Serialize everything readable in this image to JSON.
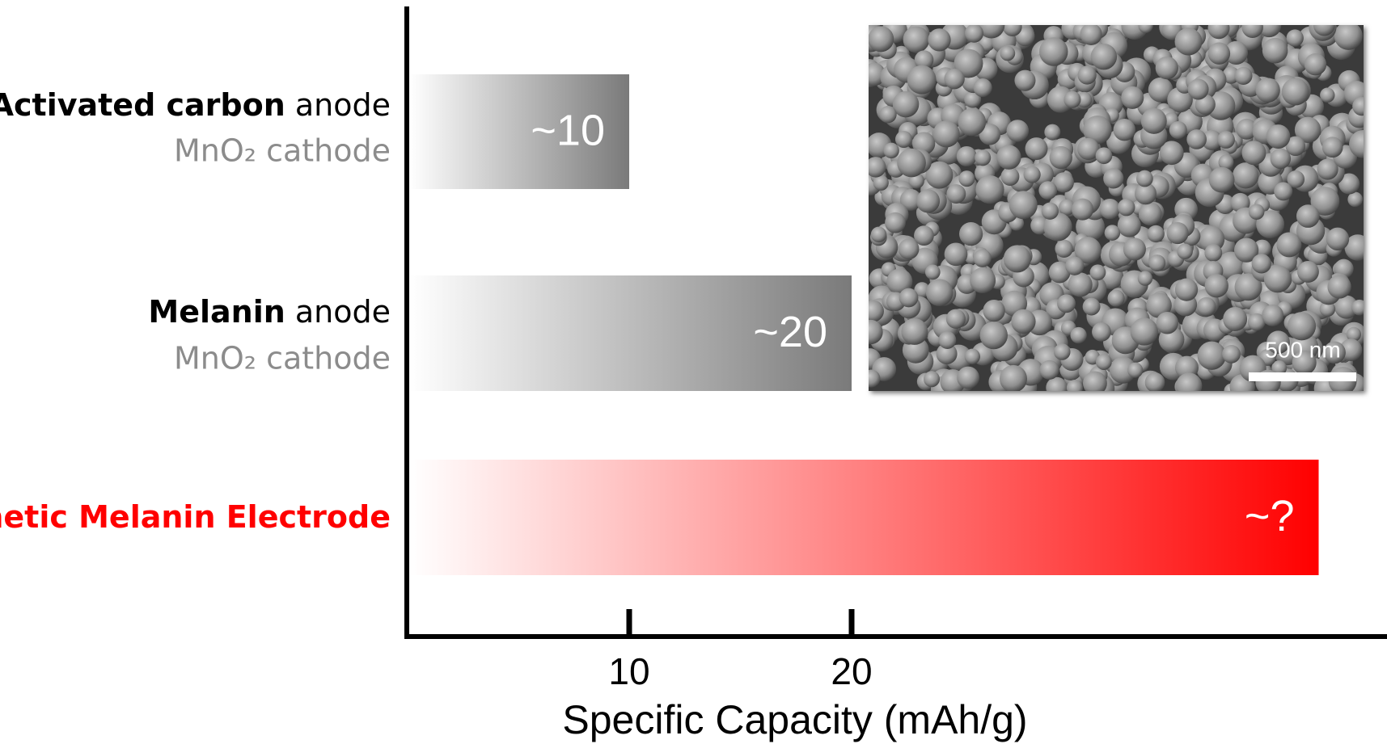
{
  "chart_data": {
    "type": "hbar",
    "categories": [
      {
        "main": "Activated carbon",
        "suffix": "anode",
        "second_line": "MnO₂ cathode"
      },
      {
        "main": "Melanin",
        "suffix": "anode",
        "second_line": "MnO₂ cathode"
      },
      {
        "main": "Synthetic Melanin Electrode"
      }
    ],
    "values": [
      10,
      20,
      41
    ],
    "value_labels": [
      "~10",
      "~20",
      "~?"
    ],
    "colors": [
      "#7a7a7a",
      "#7a7a7a",
      "#ff0000"
    ],
    "xlabel": "Specific Capacity (mAh/g)",
    "xlim": [
      0,
      44
    ],
    "xticks": [
      10,
      20
    ],
    "inset": {
      "scale_bar_label": "500 nm"
    }
  }
}
